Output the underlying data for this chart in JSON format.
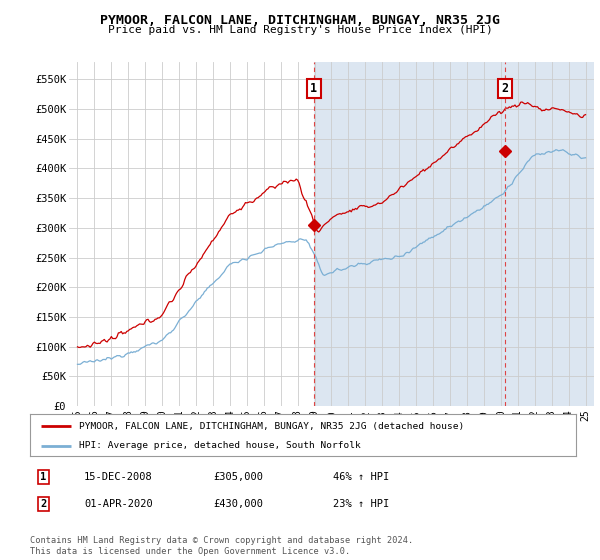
{
  "title": "PYMOOR, FALCON LANE, DITCHINGHAM, BUNGAY, NR35 2JG",
  "subtitle": "Price paid vs. HM Land Registry's House Price Index (HPI)",
  "ylim": [
    0,
    580000
  ],
  "yticks": [
    0,
    50000,
    100000,
    150000,
    200000,
    250000,
    300000,
    350000,
    400000,
    450000,
    500000,
    550000
  ],
  "ytick_labels": [
    "£0",
    "£50K",
    "£100K",
    "£150K",
    "£200K",
    "£250K",
    "£300K",
    "£350K",
    "£400K",
    "£450K",
    "£500K",
    "£550K"
  ],
  "fig_bg_color": "#ffffff",
  "plot_bg_color_left": "#ffffff",
  "plot_bg_color_right": "#dce6f1",
  "grid_color": "#cccccc",
  "red_line_color": "#cc0000",
  "blue_line_color": "#7bafd4",
  "sale1_x": 2008.96,
  "sale1_y": 305000,
  "sale1_label": "1",
  "sale1_date": "15-DEC-2008",
  "sale1_price": "£305,000",
  "sale1_hpi": "46% ↑ HPI",
  "sale2_x": 2020.25,
  "sale2_y": 430000,
  "sale2_label": "2",
  "sale2_date": "01-APR-2020",
  "sale2_price": "£430,000",
  "sale2_hpi": "23% ↑ HPI",
  "legend_line1": "PYMOOR, FALCON LANE, DITCHINGHAM, BUNGAY, NR35 2JG (detached house)",
  "legend_line2": "HPI: Average price, detached house, South Norfolk",
  "footer": "Contains HM Land Registry data © Crown copyright and database right 2024.\nThis data is licensed under the Open Government Licence v3.0.",
  "xlim": [
    1994.5,
    2025.5
  ],
  "xtick_years": [
    1995,
    1996,
    1997,
    1998,
    1999,
    2000,
    2001,
    2002,
    2003,
    2004,
    2005,
    2006,
    2007,
    2008,
    2009,
    2010,
    2011,
    2012,
    2013,
    2014,
    2015,
    2016,
    2017,
    2018,
    2019,
    2020,
    2021,
    2022,
    2023,
    2024,
    2025
  ]
}
